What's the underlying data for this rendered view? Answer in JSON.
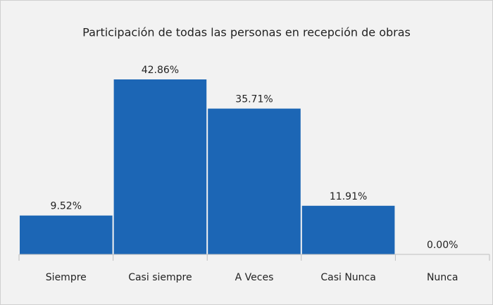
{
  "chart_data": {
    "type": "bar",
    "title": "Participación de todas las personas en recepción de obras",
    "categories": [
      "Siempre",
      "Casi siempre",
      "A Veces",
      "Casi Nunca",
      "Nunca"
    ],
    "values": [
      9.52,
      42.86,
      35.71,
      11.91,
      0
    ],
    "value_labels": [
      "9.52%",
      "42.86%",
      "35.71%",
      "11.91%",
      "0.00%"
    ],
    "color": "#1c66b5"
  }
}
